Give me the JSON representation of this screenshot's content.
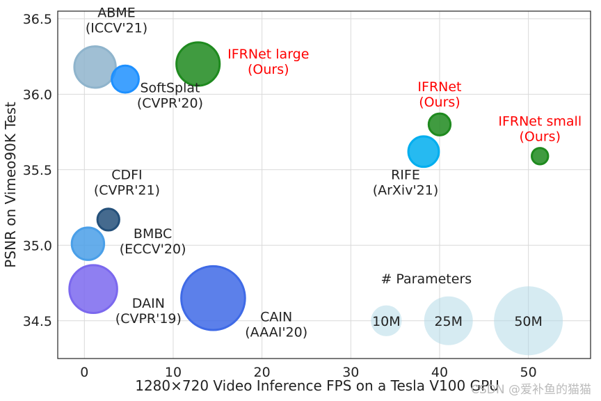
{
  "chart_data": {
    "type": "scatter",
    "title": "",
    "xlabel": "1280×720 Video Inference FPS on a Tesla V100 GPU",
    "ylabel": "PSNR on Vimeo90K Test",
    "xlim": [
      -3,
      57
    ],
    "ylim": [
      34.25,
      36.55
    ],
    "xticks": [
      0,
      10,
      20,
      30,
      40,
      50
    ],
    "yticks": [
      34.5,
      35.0,
      35.5,
      36.0,
      36.5
    ],
    "xtick_labels": [
      "0",
      "10",
      "20",
      "30",
      "40",
      "50"
    ],
    "ytick_labels": [
      "34.5",
      "35.0",
      "35.5",
      "36.0",
      "36.5"
    ],
    "grid": true,
    "points": [
      {
        "id": "abme",
        "name": "ABME",
        "venue": "(ICCV'21)",
        "x": 1.2,
        "y": 36.18,
        "params_m": 18,
        "color": "#8fb4cc",
        "label_color": "#222222",
        "label_pos": "above-right"
      },
      {
        "id": "softsplat",
        "name": "SoftSplat",
        "venue": "(CVPR'20)",
        "x": 4.6,
        "y": 36.1,
        "params_m": 7.7,
        "color": "#1e90ff",
        "label_color": "#222222",
        "label_pos": "below-right"
      },
      {
        "id": "ifrnet-large",
        "name": "IFRNet large",
        "venue": "(Ours)",
        "x": 12.8,
        "y": 36.2,
        "params_m": 19.7,
        "color": "#1f8a1f",
        "label_color": "#ff0000",
        "label_pos": "right"
      },
      {
        "id": "ifrnet",
        "name": "IFRNet",
        "venue": "(Ours)",
        "x": 40.0,
        "y": 35.8,
        "params_m": 5.0,
        "color": "#1f8a1f",
        "label_color": "#ff0000",
        "label_pos": "above"
      },
      {
        "id": "ifrnet-small",
        "name": "IFRNet small",
        "venue": "(Ours)",
        "x": 51.3,
        "y": 35.59,
        "params_m": 2.8,
        "color": "#1f8a1f",
        "label_color": "#ff0000",
        "label_pos": "above"
      },
      {
        "id": "rife",
        "name": "RIFE",
        "venue": "(ArXiv'21)",
        "x": 38.2,
        "y": 35.62,
        "params_m": 9.8,
        "color": "#00aeef",
        "label_color": "#222222",
        "label_pos": "below-left"
      },
      {
        "id": "cdfi",
        "name": "CDFI",
        "venue": "(CVPR'21)",
        "x": 2.7,
        "y": 35.17,
        "params_m": 5.0,
        "color": "#24507a",
        "label_color": "#222222",
        "label_pos": "above-right"
      },
      {
        "id": "bmbc",
        "name": "BMBC",
        "venue": "(ECCV'20)",
        "x": 0.4,
        "y": 35.01,
        "params_m": 11.0,
        "color": "#4a9fe8",
        "label_color": "#222222",
        "label_pos": "right"
      },
      {
        "id": "dain",
        "name": "DAIN",
        "venue": "(CVPR'19)",
        "x": 1.0,
        "y": 34.71,
        "params_m": 24.0,
        "color": "#7b68ee",
        "label_color": "#222222",
        "label_pos": "below-right"
      },
      {
        "id": "cain",
        "name": "CAIN",
        "venue": "(AAAI'20)",
        "x": 14.5,
        "y": 34.65,
        "params_m": 42.8,
        "color": "#3f6ae6",
        "label_color": "#222222",
        "label_pos": "below-right"
      }
    ],
    "size_legend": {
      "title": "# Parameters",
      "y": 34.5,
      "items": [
        {
          "label": "10M",
          "params_m": 10,
          "x": 34.0
        },
        {
          "label": "25M",
          "params_m": 25,
          "x": 41.0
        },
        {
          "label": "50M",
          "params_m": 50,
          "x": 50.0
        }
      ],
      "color": "#add8e6"
    }
  },
  "watermark": "CSDN @爱补鱼的猫猫"
}
